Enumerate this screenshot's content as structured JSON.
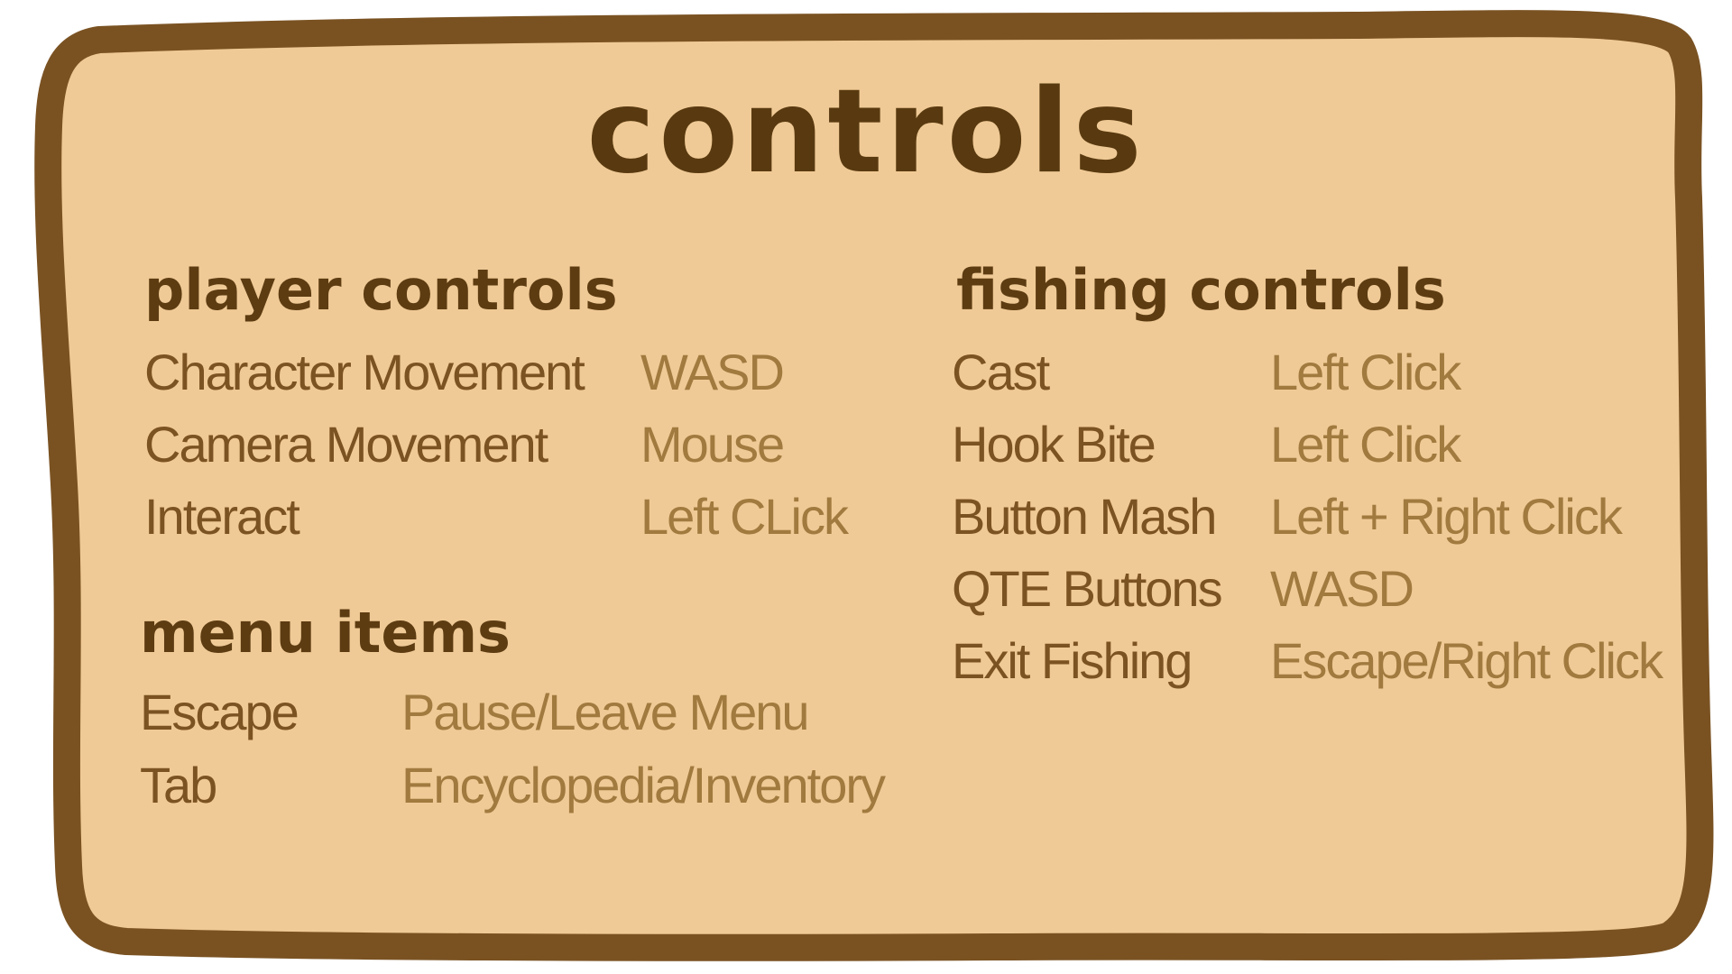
{
  "title": "controls",
  "sections": {
    "player": {
      "heading": "player controls",
      "rows": [
        {
          "action": "Character Movement",
          "key": "WASD"
        },
        {
          "action": "Camera Movement",
          "key": "Mouse"
        },
        {
          "action": "Interact",
          "key": "Left CLick"
        }
      ]
    },
    "menu": {
      "heading": "menu items",
      "rows": [
        {
          "action": "Escape",
          "key": "Pause/Leave Menu"
        },
        {
          "action": "Tab",
          "key": "Encyclopedia/Inventory"
        }
      ]
    },
    "fishing": {
      "heading": "fishing controls",
      "rows": [
        {
          "action": "Cast",
          "key": "Left Click"
        },
        {
          "action": "Hook Bite",
          "key": "Left Click"
        },
        {
          "action": "Button Mash",
          "key": "Left + Right Click"
        },
        {
          "action": "QTE Buttons",
          "key": "WASD"
        },
        {
          "action": "Exit Fishing",
          "key": "Escape/Right Click"
        }
      ]
    }
  },
  "colors": {
    "board_fill": "#f0ca96",
    "board_border": "#7a5222",
    "title": "#593a10",
    "heading": "#5d3c12",
    "action_text": "#7b5222",
    "key_text": "#a07a3e"
  }
}
